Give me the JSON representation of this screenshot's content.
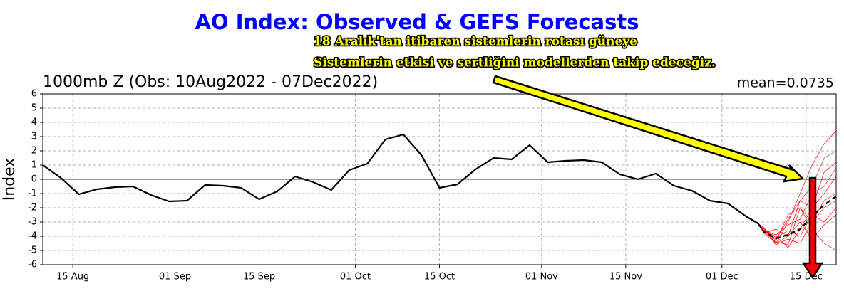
{
  "chart_data": {
    "type": "line",
    "title": "AO Index: Observed & GEFS Forecasts",
    "subtitle": "1000mb Z (Obs: 10Aug2022 - 07Dec2022)",
    "stat": "mean=0.0735",
    "y_label": "Index",
    "annotations": [
      "18 Aralık'tan itibaren sistemlerin rotası güneye",
      "Sistemlerin etkisi ve sertliğini modellerden takip edeceğiz."
    ],
    "xlim": [
      "10 Aug",
      "20 Dec"
    ],
    "xticks": [
      "15 Aug",
      "01 Sep",
      "15 Sep",
      "01 Oct",
      "15 Oct",
      "01 Nov",
      "15 Nov",
      "01 Dec",
      "15 Dec"
    ],
    "ylim": [
      -6,
      6
    ],
    "yticks": [
      -6,
      -5,
      -4,
      -3,
      -2,
      -1,
      0,
      1,
      2,
      3,
      4,
      5,
      6
    ],
    "grid": true,
    "zero_line": true,
    "series": [
      {
        "color": "#ff0000",
        "width": 0.7,
        "x": [
          "07 Dec",
          "08 Dec",
          "10 Dec",
          "12 Dec",
          "14 Dec",
          "16 Dec",
          "18 Dec",
          "20 Dec"
        ],
        "values": [
          -3.1,
          -3.5,
          -4.5,
          -3.0,
          -1.0,
          1.0,
          2.5,
          3.4
        ]
      },
      {
        "color": "#ff0000",
        "width": 0.7,
        "x": [
          "07 Dec",
          "08 Dec",
          "10 Dec",
          "12 Dec",
          "14 Dec",
          "16 Dec",
          "18 Dec",
          "20 Dec"
        ],
        "values": [
          -3.1,
          -3.7,
          -4.0,
          -4.8,
          -3.5,
          -2.0,
          -1.0,
          0.2
        ]
      },
      {
        "color": "#ff0000",
        "width": 0.7,
        "x": [
          "07 Dec",
          "08 Dec",
          "10 Dec",
          "12 Dec",
          "14 Dec",
          "16 Dec",
          "18 Dec",
          "20 Dec"
        ],
        "values": [
          -3.1,
          -3.6,
          -4.3,
          -2.5,
          -2.0,
          -3.5,
          -4.5,
          -5.0
        ]
      },
      {
        "color": "#ff0000",
        "width": 0.7,
        "x": [
          "07 Dec",
          "08 Dec",
          "10 Dec",
          "12 Dec",
          "14 Dec",
          "16 Dec",
          "18 Dec",
          "20 Dec"
        ],
        "values": [
          -3.1,
          -3.8,
          -3.5,
          -4.0,
          -1.5,
          -0.5,
          1.5,
          2.0
        ]
      },
      {
        "color": "#ff0000",
        "width": 0.7,
        "x": [
          "07 Dec",
          "08 Dec",
          "10 Dec",
          "12 Dec",
          "14 Dec",
          "16 Dec",
          "18 Dec",
          "20 Dec"
        ],
        "values": [
          -3.1,
          -3.4,
          -4.6,
          -4.2,
          -4.5,
          -3.0,
          -2.0,
          -1.5
        ]
      },
      {
        "color": "#ff0000",
        "width": 0.7,
        "x": [
          "07 Dec",
          "08 Dec",
          "10 Dec",
          "12 Dec",
          "14 Dec",
          "16 Dec",
          "18 Dec",
          "20 Dec"
        ],
        "values": [
          -3.1,
          -3.6,
          -3.9,
          -3.2,
          -2.8,
          -1.0,
          -0.5,
          0.8
        ]
      },
      {
        "color": "#ff0000",
        "width": 0.7,
        "x": [
          "07 Dec",
          "08 Dec",
          "10 Dec",
          "12 Dec",
          "14 Dec",
          "16 Dec",
          "18 Dec",
          "20 Dec"
        ],
        "values": [
          -3.1,
          -3.7,
          -4.4,
          -4.6,
          -2.0,
          -3.0,
          -1.5,
          -1.0
        ]
      },
      {
        "color": "#ff0000",
        "width": 0.7,
        "x": [
          "07 Dec",
          "08 Dec",
          "10 Dec",
          "12 Dec",
          "14 Dec",
          "16 Dec",
          "18 Dec",
          "20 Dec"
        ],
        "values": [
          -3.1,
          -3.5,
          -4.1,
          -3.6,
          -4.0,
          -2.5,
          -3.0,
          -2.0
        ]
      },
      {
        "color": "#ff0000",
        "width": 0.7,
        "x": [
          "07 Dec",
          "08 Dec",
          "10 Dec",
          "12 Dec",
          "14 Dec",
          "16 Dec",
          "18 Dec",
          "20 Dec"
        ],
        "values": [
          -3.1,
          -3.6,
          -4.2,
          -2.8,
          -1.5,
          -2.0,
          0.5,
          1.2
        ]
      },
      {
        "color": "#ff0000",
        "width": 0.7,
        "x": [
          "07 Dec",
          "08 Dec",
          "10 Dec",
          "12 Dec",
          "14 Dec",
          "16 Dec",
          "18 Dec",
          "20 Dec"
        ],
        "values": [
          -3.1,
          -3.8,
          -4.5,
          -4.0,
          -3.0,
          -4.2,
          -3.2,
          -2.5
        ]
      },
      {
        "color": "#000000",
        "width": 2.2,
        "x": [
          "10 Aug",
          "13 Aug",
          "16 Aug",
          "19 Aug",
          "22 Aug",
          "25 Aug",
          "28 Aug",
          "31 Aug",
          "03 Sep",
          "06 Sep",
          "09 Sep",
          "12 Sep",
          "15 Sep",
          "18 Sep",
          "21 Sep",
          "24 Sep",
          "27 Sep",
          "30 Sep",
          "03 Oct",
          "06 Oct",
          "09 Oct",
          "12 Oct",
          "15 Oct",
          "18 Oct",
          "21 Oct",
          "24 Oct",
          "27 Oct",
          "30 Oct",
          "02 Nov",
          "05 Nov",
          "08 Nov",
          "11 Nov",
          "14 Nov",
          "17 Nov",
          "20 Nov",
          "23 Nov",
          "26 Nov",
          "29 Nov",
          "02 Dec",
          "05 Dec",
          "07 Dec"
        ],
        "values": [
          1.0,
          0.1,
          -1.05,
          -0.7,
          -0.55,
          -0.5,
          -1.1,
          -1.55,
          -1.5,
          -0.4,
          -0.45,
          -0.6,
          -1.4,
          -0.85,
          0.2,
          -0.2,
          -0.75,
          0.65,
          1.1,
          2.8,
          3.15,
          1.7,
          -0.6,
          -0.35,
          0.7,
          1.5,
          1.4,
          2.4,
          1.2,
          1.3,
          1.35,
          1.2,
          0.35,
          0.0,
          0.4,
          -0.45,
          -0.8,
          -1.5,
          -1.7,
          -2.6,
          -3.1
        ]
      },
      {
        "color": "#000000",
        "width": 2.2,
        "dash": true,
        "x": [
          "07 Dec",
          "08 Dec",
          "10 Dec",
          "12 Dec",
          "14 Dec",
          "16 Dec",
          "18 Dec",
          "20 Dec"
        ],
        "values": [
          -3.1,
          -3.7,
          -4.15,
          -3.9,
          -3.5,
          -2.6,
          -1.8,
          -1.2
        ]
      }
    ]
  }
}
